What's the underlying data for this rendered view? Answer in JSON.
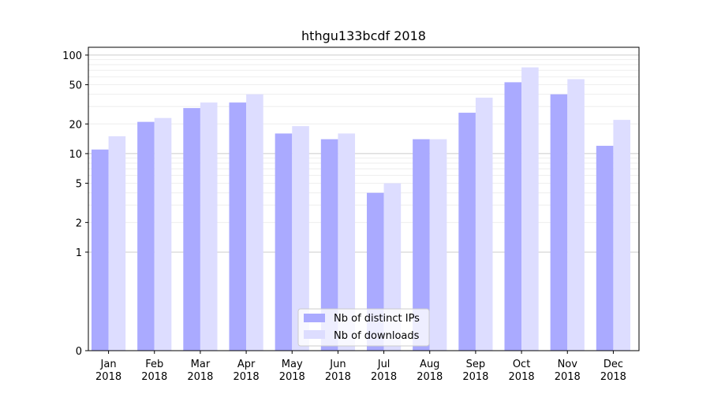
{
  "chart_data": {
    "type": "bar",
    "title": "hthgu133bcdf 2018",
    "xlabel": "",
    "ylabel": "",
    "yscale": "symlog",
    "ylim": [
      0,
      120
    ],
    "grid": true,
    "legend_position": "bottom-center",
    "categories": [
      [
        "Jan",
        "2018"
      ],
      [
        "Feb",
        "2018"
      ],
      [
        "Mar",
        "2018"
      ],
      [
        "Apr",
        "2018"
      ],
      [
        "May",
        "2018"
      ],
      [
        "Jun",
        "2018"
      ],
      [
        "Jul",
        "2018"
      ],
      [
        "Aug",
        "2018"
      ],
      [
        "Sep",
        "2018"
      ],
      [
        "Oct",
        "2018"
      ],
      [
        "Nov",
        "2018"
      ],
      [
        "Dec",
        "2018"
      ]
    ],
    "yticks": [
      0,
      1,
      2,
      5,
      10,
      20,
      50,
      100
    ],
    "series": [
      {
        "name": "Nb of distinct IPs",
        "color": "#aaaaff",
        "values": [
          11,
          21,
          29,
          33,
          16,
          14,
          4,
          14,
          26,
          53,
          40,
          12
        ]
      },
      {
        "name": "Nb of downloads",
        "color": "#ddddff",
        "values": [
          15,
          23,
          33,
          40,
          19,
          16,
          5,
          14,
          37,
          75,
          57,
          22
        ]
      }
    ]
  }
}
